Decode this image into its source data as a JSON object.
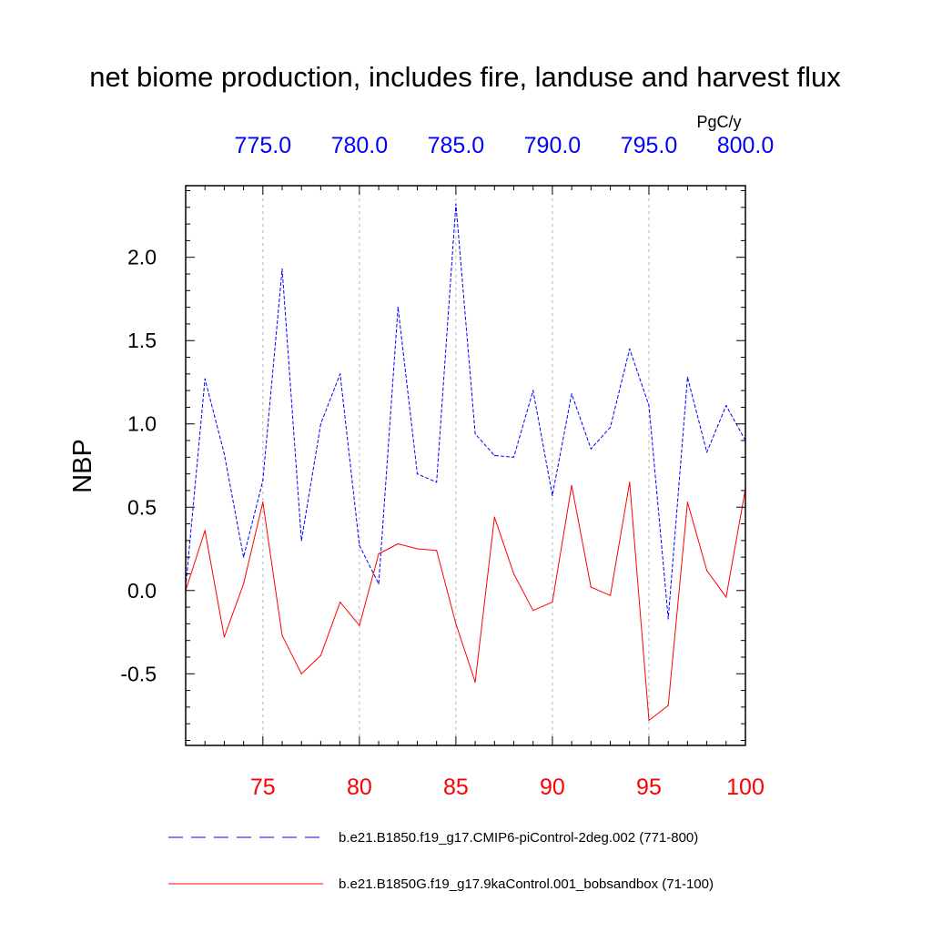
{
  "chart_data": {
    "type": "line",
    "title": "net biome production, includes fire, landuse and harvest flux",
    "units": "PgC/y",
    "ylabel": "NBP",
    "ylim": [
      -0.93,
      2.43
    ],
    "yticks": [
      -0.5,
      0.0,
      0.5,
      1.0,
      1.5,
      2.0
    ],
    "ytick_labels": [
      "-0.5",
      "0.0",
      "0.5",
      "1.0",
      "1.5",
      "2.0"
    ],
    "bottom_axis": {
      "xlim": [
        71,
        100
      ],
      "ticks": [
        75,
        80,
        85,
        90,
        95,
        100
      ],
      "tick_labels": [
        "75",
        "80",
        "85",
        "90",
        "95",
        "100"
      ],
      "color": "#ff0000"
    },
    "top_axis": {
      "xlim": [
        771,
        800
      ],
      "ticks": [
        775,
        780,
        785,
        790,
        795,
        800
      ],
      "tick_labels": [
        "775.0",
        "780.0",
        "785.0",
        "790.0",
        "795.0",
        "800.0"
      ],
      "color": "#0000ff"
    },
    "gridlines": "vertical dotted at major ticks",
    "series": [
      {
        "name": "b.e21.B1850.f19_g17.CMIP6-piControl-2deg.002 (771-800)",
        "axis": "top",
        "color": "#0000ff",
        "style": "dashed",
        "x": [
          771,
          772,
          773,
          774,
          775,
          776,
          777,
          778,
          779,
          780,
          781,
          782,
          783,
          784,
          785,
          786,
          787,
          788,
          789,
          790,
          791,
          792,
          793,
          794,
          795,
          796,
          797,
          798,
          799,
          800
        ],
        "values": [
          0.02,
          1.27,
          0.82,
          0.2,
          0.66,
          1.93,
          0.3,
          1.0,
          1.3,
          0.27,
          0.04,
          1.7,
          0.7,
          0.65,
          2.32,
          0.94,
          0.81,
          0.8,
          1.2,
          0.57,
          1.18,
          0.85,
          0.98,
          1.45,
          1.11,
          -0.17,
          1.28,
          0.83,
          1.11,
          0.9
        ]
      },
      {
        "name": "b.e21.B1850G.f19_g17.9kaControl.001_bobsandbox (71-100)",
        "axis": "bottom",
        "color": "#ff0000",
        "style": "solid",
        "x": [
          71,
          72,
          73,
          74,
          75,
          76,
          77,
          78,
          79,
          80,
          81,
          82,
          83,
          84,
          85,
          86,
          87,
          88,
          89,
          90,
          91,
          92,
          93,
          94,
          95,
          96,
          97,
          98,
          99,
          100
        ],
        "values": [
          0.0,
          0.36,
          -0.28,
          0.04,
          0.53,
          -0.27,
          -0.5,
          -0.39,
          -0.07,
          -0.21,
          0.22,
          0.28,
          0.25,
          0.24,
          -0.2,
          -0.55,
          0.44,
          0.1,
          -0.12,
          -0.07,
          0.63,
          0.02,
          -0.03,
          0.65,
          -0.78,
          -0.69,
          0.53,
          0.12,
          -0.04,
          0.61
        ]
      }
    ],
    "legend": {
      "placement": "bottom",
      "entries": [
        "b.e21.B1850.f19_g17.CMIP6-piControl-2deg.002 (771-800)",
        "b.e21.B1850G.f19_g17.9kaControl.001_bobsandbox (71-100)"
      ]
    }
  }
}
